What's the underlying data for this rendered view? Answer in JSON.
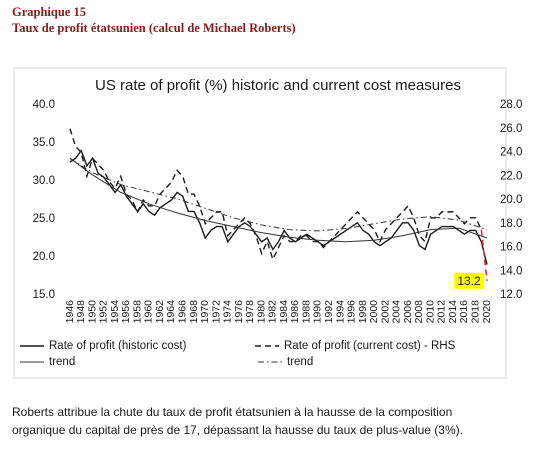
{
  "header": {
    "label": "Graphique 15",
    "title": "Taux de profit étatsunien (calcul de Michael Roberts)"
  },
  "caption": "Roberts attribue la chute du taux de profit étatsunien à la hausse de la composition organique du capital de près de 17, dépassant la hausse du taux de plus-value (3%).",
  "chart_data": {
    "type": "line",
    "title": "US rate of profit (%) historic and current cost measures",
    "xlim": [
      1946,
      2020
    ],
    "xticks": [
      1946,
      1948,
      1950,
      1952,
      1954,
      1956,
      1958,
      1960,
      1962,
      1964,
      1966,
      1968,
      1970,
      1972,
      1974,
      1976,
      1978,
      1980,
      1982,
      1984,
      1986,
      1988,
      1990,
      1992,
      1994,
      1996,
      1998,
      2000,
      2002,
      2004,
      2006,
      2008,
      2010,
      2012,
      2014,
      2016,
      2018,
      2020
    ],
    "ylim": [
      15,
      40
    ],
    "yticks": [
      {
        "value": 15,
        "label": "15.0"
      },
      {
        "value": 20,
        "label": "20.0"
      },
      {
        "value": 25,
        "label": "25.0"
      },
      {
        "value": 30,
        "label": "30.0"
      },
      {
        "value": 35,
        "label": "35.0"
      },
      {
        "value": 40,
        "label": "40.0"
      }
    ],
    "y2lim": [
      12,
      28
    ],
    "y2ticks": [
      {
        "value": 12,
        "label": "12.0"
      },
      {
        "value": 14,
        "label": "14.0"
      },
      {
        "value": 16,
        "label": "16.0"
      },
      {
        "value": 18,
        "label": "18.0"
      },
      {
        "value": 20,
        "label": "20.0"
      },
      {
        "value": 22,
        "label": "22.0"
      },
      {
        "value": 24,
        "label": "24.0"
      },
      {
        "value": 26,
        "label": "26.0"
      },
      {
        "value": 28,
        "label": "28.0"
      }
    ],
    "series": [
      {
        "name": "Rate of profit (historic cost)",
        "color": "#1a1a1a",
        "dash": "solid",
        "axis": "y",
        "x": [
          1946,
          1947,
          1948,
          1949,
          1950,
          1951,
          1952,
          1953,
          1954,
          1955,
          1956,
          1957,
          1958,
          1959,
          1960,
          1961,
          1962,
          1963,
          1964,
          1965,
          1966,
          1967,
          1968,
          1969,
          1970,
          1971,
          1972,
          1973,
          1974,
          1975,
          1976,
          1977,
          1978,
          1979,
          1980,
          1981,
          1982,
          1983,
          1984,
          1985,
          1986,
          1987,
          1988,
          1989,
          1990,
          1991,
          1992,
          1993,
          1994,
          1995,
          1996,
          1997,
          1998,
          1999,
          2000,
          2001,
          2002,
          2003,
          2004,
          2005,
          2006,
          2007,
          2008,
          2009,
          2010,
          2011,
          2012,
          2013,
          2014,
          2015,
          2016,
          2017,
          2018,
          2019,
          2020
        ],
        "values": [
          32.5,
          33,
          34,
          32,
          33,
          31,
          30.5,
          29.5,
          28.5,
          29.5,
          28,
          27,
          26,
          27,
          26,
          25.5,
          26.5,
          27,
          27.5,
          28.5,
          28,
          26,
          26,
          24.5,
          22.5,
          23.5,
          24,
          24,
          22,
          23,
          24,
          24.5,
          24,
          23,
          22,
          22.5,
          21,
          22,
          23.5,
          22.5,
          22,
          22.5,
          23,
          22.5,
          22,
          21.5,
          22,
          22.5,
          23,
          23.5,
          24,
          24.5,
          23.5,
          23,
          22,
          21.5,
          22,
          22.5,
          23.5,
          24.5,
          24.5,
          23.5,
          21.5,
          21,
          23,
          23.5,
          24,
          24,
          24,
          23.5,
          23,
          23.5,
          23.5,
          22,
          19
        ]
      },
      {
        "name": "Rate of profit (current cost) - RHS",
        "color": "#1a1a1a",
        "tail_color": "#e03030",
        "dash": "dash",
        "axis": "y2",
        "x": [
          1946,
          1947,
          1948,
          1949,
          1950,
          1951,
          1952,
          1953,
          1954,
          1955,
          1956,
          1957,
          1958,
          1959,
          1960,
          1961,
          1962,
          1963,
          1964,
          1965,
          1966,
          1967,
          1968,
          1969,
          1970,
          1971,
          1972,
          1973,
          1974,
          1975,
          1976,
          1977,
          1978,
          1979,
          1980,
          1981,
          1982,
          1983,
          1984,
          1985,
          1986,
          1987,
          1988,
          1989,
          1990,
          1991,
          1992,
          1993,
          1994,
          1995,
          1996,
          1997,
          1998,
          1999,
          2000,
          2001,
          2002,
          2003,
          2004,
          2005,
          2006,
          2007,
          2008,
          2009,
          2010,
          2011,
          2012,
          2013,
          2014,
          2015,
          2016,
          2017,
          2018,
          2019,
          2020
        ],
        "values": [
          26,
          24.5,
          24,
          22,
          23.5,
          23,
          22.5,
          21.5,
          21,
          22,
          20.5,
          20,
          19,
          20,
          19.5,
          19.5,
          20.5,
          21,
          21.5,
          22.5,
          22,
          20.5,
          20.5,
          19.5,
          18,
          18.5,
          19,
          19,
          17,
          17.5,
          18,
          18.5,
          18,
          17,
          15.5,
          16.5,
          15,
          16,
          17,
          16.5,
          16.5,
          17,
          17,
          16.5,
          16.5,
          16,
          16.5,
          17,
          17.5,
          18,
          18.5,
          19,
          18.5,
          18,
          17.5,
          16.5,
          17.5,
          18,
          18.5,
          19,
          19.5,
          18.5,
          17,
          16.5,
          18.5,
          18.5,
          19,
          19,
          19,
          18.5,
          18,
          18.5,
          18.5,
          17.5,
          13.2
        ]
      },
      {
        "name": "trend",
        "color": "#333333",
        "dash": "solid",
        "axis": "y",
        "x": [
          1946,
          1950,
          1955,
          1960,
          1965,
          1970,
          1975,
          1980,
          1985,
          1990,
          1995,
          2000,
          2005,
          2010,
          2015,
          2020
        ],
        "values": [
          33,
          30.8,
          28.5,
          27,
          25.8,
          24.8,
          24,
          23.2,
          22.6,
          22.2,
          22,
          22.2,
          22.8,
          23.6,
          23.8,
          22.5
        ]
      },
      {
        "name": "trend",
        "color": "#333333",
        "dash": "dashdot",
        "axis": "y2",
        "x": [
          1946,
          1950,
          1955,
          1960,
          1965,
          1970,
          1975,
          1980,
          1985,
          1990,
          1995,
          2000,
          2005,
          2010,
          2015,
          2020
        ],
        "values": [
          23.5,
          22.3,
          21.3,
          20.7,
          20.1,
          19.3,
          18.5,
          17.9,
          17.5,
          17.4,
          17.6,
          18,
          18.4,
          18.6,
          18.3,
          17.5
        ]
      }
    ],
    "annotation": {
      "x": 2020,
      "value": 13.2,
      "label": "13.2",
      "axis": "y2",
      "background": "#ffff00"
    }
  }
}
